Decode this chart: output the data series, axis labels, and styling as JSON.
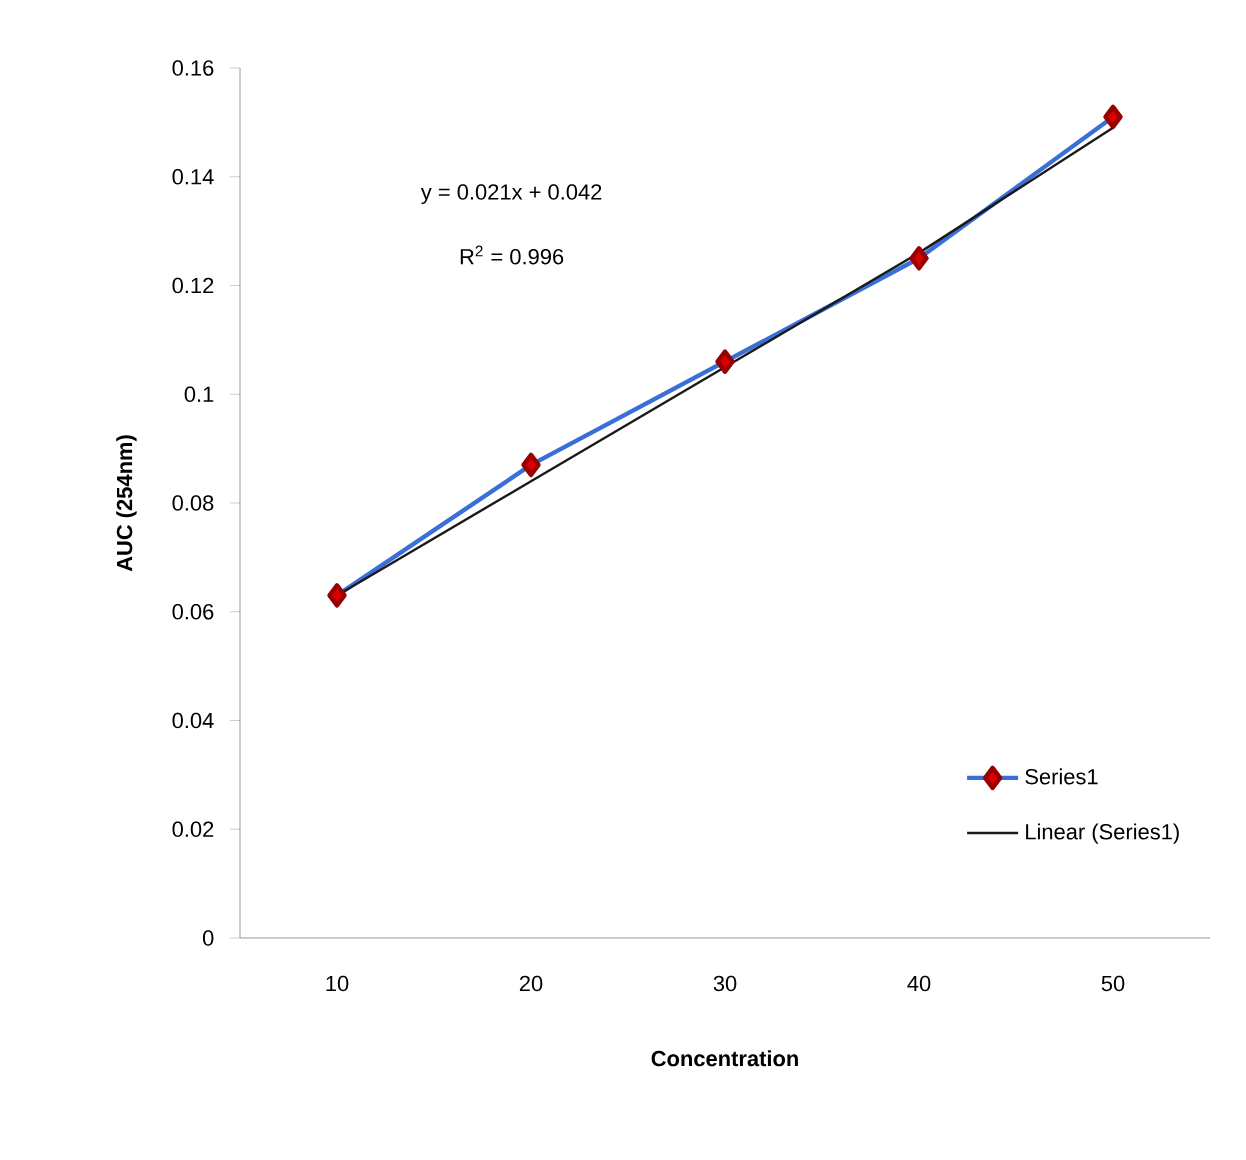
{
  "chart_data": {
    "type": "line",
    "xlabel": "Concentration",
    "ylabel": "AUC  (254nm)",
    "categories": [
      "10",
      "20",
      "30",
      "40",
      "50"
    ],
    "series": [
      {
        "name": "Series1",
        "color": "#3a6fd8",
        "values": [
          0.063,
          0.087,
          0.106,
          0.125,
          0.151
        ],
        "marker": "diamond"
      },
      {
        "name": "Linear (Series1)",
        "color": "#1a1a1a",
        "values": [
          0.063,
          0.084,
          0.105,
          0.126,
          0.149
        ],
        "marker": "none"
      }
    ],
    "ylim": [
      0,
      0.16
    ],
    "yticks": [
      0,
      0.02,
      0.04,
      0.06,
      0.08,
      0.1,
      0.12,
      0.14,
      0.16
    ],
    "annotations": [
      "y = 0.021x + 0.042",
      "R$^{2}$ = 0.996"
    ],
    "grid": false,
    "legend": "bottom right"
  }
}
